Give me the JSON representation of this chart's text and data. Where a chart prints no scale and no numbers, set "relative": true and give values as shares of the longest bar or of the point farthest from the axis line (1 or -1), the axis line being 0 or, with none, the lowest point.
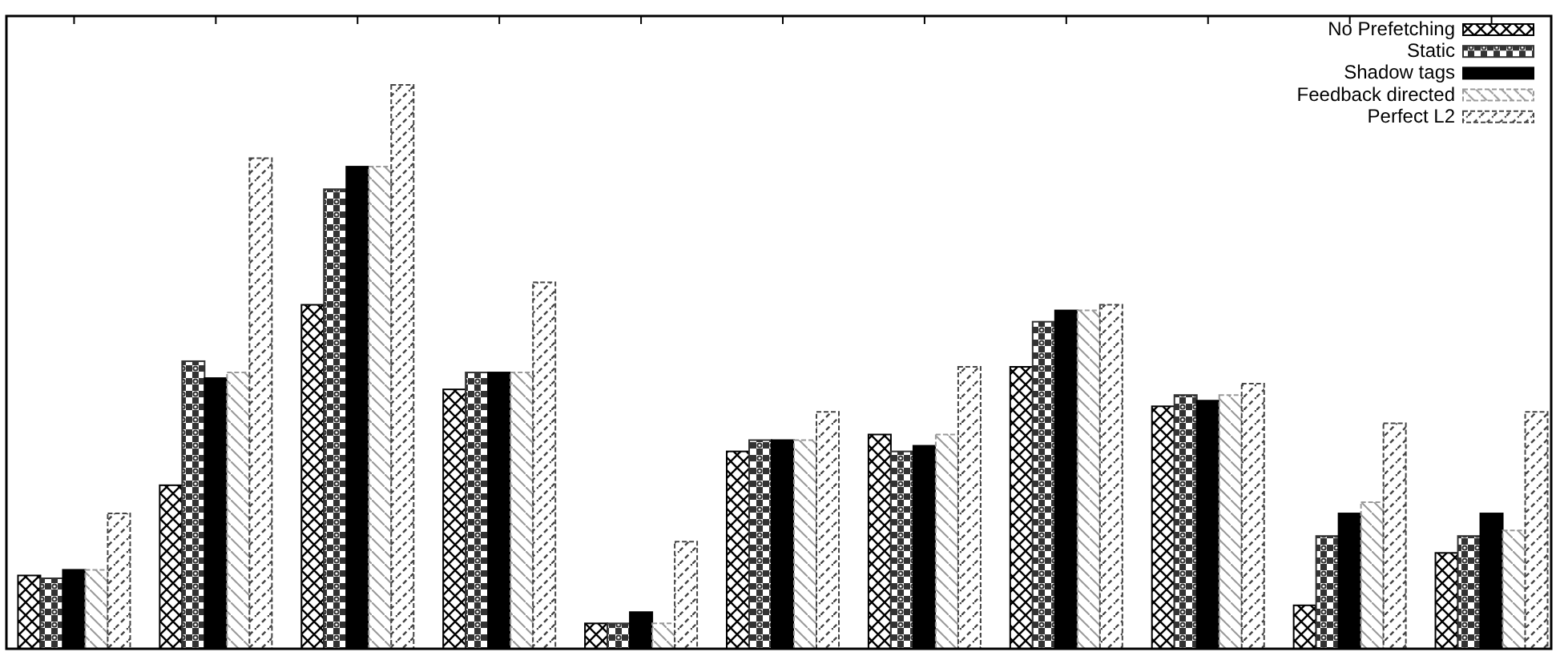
{
  "chart_data": {
    "type": "bar",
    "relative": true,
    "categories": [
      null,
      null,
      null,
      null,
      null,
      null,
      null,
      null,
      null,
      null,
      null
    ],
    "legend": "top right",
    "series": [
      {
        "name": "No Prefetching",
        "color": "#000000",
        "values": [
          0.13,
          0.29,
          0.61,
          0.46,
          0.045,
          0.35,
          0.38,
          0.5,
          0.43,
          0.077,
          0.17
        ]
      },
      {
        "name": "Static",
        "color": "#333333",
        "values": [
          0.125,
          0.51,
          0.815,
          0.49,
          0.045,
          0.37,
          0.35,
          0.58,
          0.45,
          0.2,
          0.2
        ]
      },
      {
        "name": "Shadow tags",
        "color": "#000000",
        "values": [
          0.14,
          0.48,
          0.855,
          0.49,
          0.065,
          0.37,
          0.36,
          0.6,
          0.44,
          0.24,
          0.24
        ]
      },
      {
        "name": "Feedback directed",
        "color": "#999999",
        "values": [
          0.14,
          0.49,
          0.855,
          0.49,
          0.045,
          0.37,
          0.38,
          0.6,
          0.45,
          0.26,
          0.21
        ]
      },
      {
        "name": "Perfect L2",
        "color": "#444444",
        "values": [
          0.24,
          0.87,
          1,
          0.65,
          0.19,
          0.42,
          0.5,
          0.61,
          0.47,
          0.4,
          0.42
        ]
      }
    ]
  }
}
